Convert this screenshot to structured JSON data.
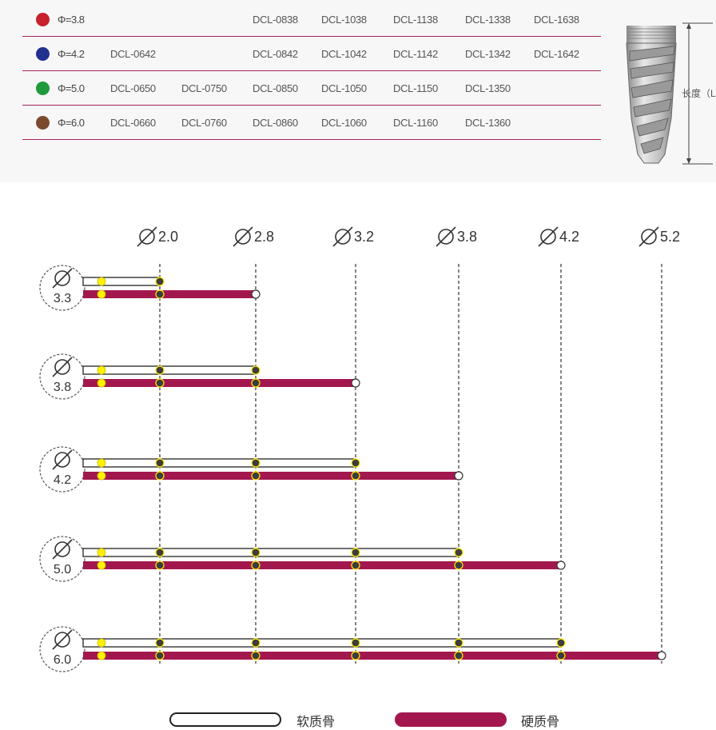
{
  "spec_table": {
    "rows": [
      {
        "color": "#c8202d",
        "diameter": "Φ=3.8",
        "codes": [
          "",
          "",
          "DCL-0838",
          "DCL-1038",
          "DCL-1138",
          "DCL-1338",
          "DCL-1638"
        ]
      },
      {
        "color": "#22308f",
        "diameter": "Φ=4.2",
        "codes": [
          "DCL-0642",
          "",
          "DCL-0842",
          "DCL-1042",
          "DCL-1142",
          "DCL-1342",
          "DCL-1642"
        ]
      },
      {
        "color": "#1f9a3a",
        "diameter": "Φ=5.0",
        "codes": [
          "DCL-0650",
          "DCL-0750",
          "DCL-0850",
          "DCL-1050",
          "DCL-1150",
          "DCL-1350",
          ""
        ]
      },
      {
        "color": "#7a4a2e",
        "diameter": "Φ=6.0",
        "codes": [
          "DCL-0660",
          "DCL-0760",
          "DCL-0860",
          "DCL-1060",
          "DCL-1160",
          "DCL-1360",
          ""
        ]
      }
    ],
    "length_label": "长度（L"
  },
  "chart_data": {
    "type": "diagram",
    "drill_headers": [
      "2.0",
      "2.8",
      "3.2",
      "3.8",
      "4.2",
      "5.2"
    ],
    "implants": [
      {
        "label": "3.3",
        "soft_end": "2.0",
        "hard_end": "2.8"
      },
      {
        "label": "3.8",
        "soft_end": "2.8",
        "hard_end": "3.2"
      },
      {
        "label": "4.2",
        "soft_end": "3.2",
        "hard_end": "3.8"
      },
      {
        "label": "5.0",
        "soft_end": "3.8",
        "hard_end": "4.2"
      },
      {
        "label": "6.0",
        "soft_end": "4.2",
        "hard_end": "5.2"
      }
    ],
    "colors": {
      "hard": "#a3174f",
      "soft": "#ffffff",
      "start_dot": "#fff200",
      "node_dot": "#3d3d3d"
    }
  },
  "legend": {
    "soft_label": "软质骨",
    "hard_label": "硬质骨"
  }
}
